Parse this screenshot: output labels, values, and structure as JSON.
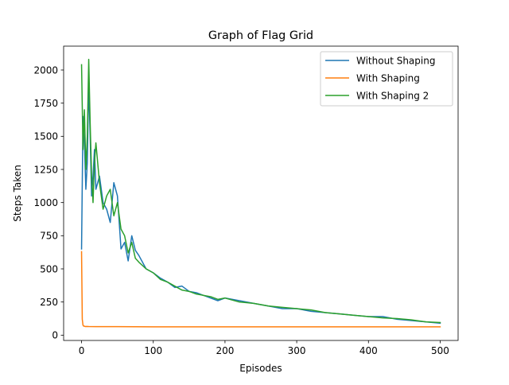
{
  "chart_data": {
    "type": "line",
    "title": "Graph of Flag Grid",
    "xlabel": "Episodes",
    "ylabel": "Steps Taken",
    "xlim": [
      -25,
      525
    ],
    "ylim": [
      -40,
      2180
    ],
    "xticks": [
      0,
      100,
      200,
      300,
      400,
      500
    ],
    "yticks": [
      0,
      250,
      500,
      750,
      1000,
      1250,
      1500,
      1750,
      2000
    ],
    "legend_position": "upper right",
    "grid": false,
    "series": [
      {
        "name": "Without Shaping",
        "color": "#1f77b4",
        "x": [
          0,
          2,
          4,
          6,
          8,
          10,
          12,
          14,
          16,
          18,
          20,
          25,
          30,
          35,
          40,
          45,
          50,
          55,
          60,
          65,
          70,
          75,
          80,
          90,
          100,
          110,
          120,
          130,
          140,
          150,
          160,
          170,
          180,
          190,
          200,
          220,
          240,
          260,
          280,
          300,
          320,
          340,
          360,
          380,
          400,
          420,
          440,
          460,
          480,
          500
        ],
        "values": [
          650,
          1650,
          1450,
          1100,
          1300,
          1900,
          1500,
          1050,
          1200,
          1400,
          1100,
          1200,
          1000,
          950,
          850,
          1150,
          1050,
          650,
          700,
          560,
          750,
          640,
          600,
          500,
          470,
          430,
          400,
          360,
          370,
          330,
          320,
          300,
          280,
          260,
          280,
          260,
          240,
          220,
          200,
          200,
          180,
          170,
          160,
          150,
          140,
          140,
          120,
          110,
          100,
          90
        ]
      },
      {
        "name": "With Shaping",
        "color": "#ff7f0e",
        "x": [
          0,
          1,
          2,
          3,
          4,
          5,
          7,
          10,
          20,
          50,
          100,
          200,
          300,
          400,
          500
        ],
        "values": [
          630,
          120,
          75,
          68,
          68,
          65,
          66,
          65,
          64,
          64,
          63,
          63,
          63,
          63,
          63
        ]
      },
      {
        "name": "With Shaping 2",
        "color": "#2ca02c",
        "x": [
          0,
          2,
          4,
          6,
          8,
          10,
          12,
          14,
          16,
          18,
          20,
          25,
          30,
          35,
          40,
          45,
          50,
          55,
          60,
          65,
          70,
          75,
          80,
          90,
          100,
          110,
          120,
          130,
          140,
          150,
          160,
          170,
          180,
          190,
          200,
          220,
          240,
          260,
          280,
          300,
          320,
          340,
          360,
          380,
          400,
          420,
          440,
          460,
          480,
          500
        ],
        "values": [
          2040,
          1400,
          1700,
          1250,
          1500,
          2080,
          1600,
          1200,
          1000,
          1300,
          1450,
          1150,
          950,
          1050,
          1100,
          900,
          1000,
          800,
          750,
          620,
          700,
          580,
          550,
          500,
          470,
          420,
          400,
          370,
          340,
          330,
          310,
          300,
          290,
          270,
          280,
          250,
          240,
          220,
          210,
          200,
          190,
          170,
          160,
          150,
          140,
          130,
          125,
          115,
          100,
          95
        ]
      }
    ]
  }
}
